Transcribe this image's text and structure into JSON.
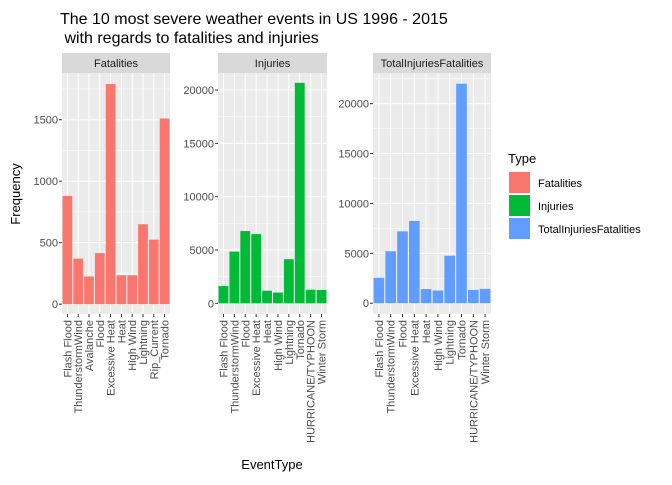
{
  "chart_data": {
    "type": "bar",
    "title": "The 10 most severe weather events in US 1996 - 2015\n with regards to fatalities and injuries",
    "xlabel": "EventType",
    "ylabel": "Frequency",
    "grid": true,
    "legend_position": "right",
    "legend": {
      "title": "Type",
      "entries": [
        {
          "label": "Fatalities",
          "color": "#F8766D"
        },
        {
          "label": "Injuries",
          "color": "#00BA38"
        },
        {
          "label": "TotalInjuriesFatalities",
          "color": "#619CFF"
        }
      ]
    },
    "facets": [
      {
        "name": "Fatalities",
        "color": "#F8766D",
        "ylim": [
          -80,
          1880
        ],
        "yticks": [
          0,
          500,
          1000,
          1500
        ],
        "categories": [
          "Flash Flood",
          "ThunderstormWind",
          "Avalanche",
          "Flood",
          "Excessive Heat",
          "Heat",
          "High Wind",
          "Lightning",
          "Rip_Current",
          "Tornado"
        ],
        "values": [
          880,
          370,
          225,
          415,
          1790,
          235,
          235,
          650,
          525,
          1510
        ]
      },
      {
        "name": "Injuries",
        "color": "#00BA38",
        "ylim": [
          -1000,
          21600
        ],
        "yticks": [
          0,
          5000,
          10000,
          15000,
          20000
        ],
        "categories": [
          "Flash Flood",
          "ThunderstormWind",
          "Flood",
          "Excessive Heat",
          "Heat",
          "High Wind",
          "Lightning",
          "Tornado",
          "HURRICANE/TYPHOON",
          "Winter Storm"
        ],
        "values": [
          1620,
          4850,
          6780,
          6490,
          1180,
          1010,
          4140,
          20680,
          1270,
          1250
        ]
      },
      {
        "name": "TotalInjuriesFatalities",
        "color": "#619CFF",
        "ylim": [
          -1080,
          23070
        ],
        "yticks": [
          0,
          5000,
          10000,
          15000,
          20000
        ],
        "categories": [
          "Flash Flood",
          "ThunderstormWind",
          "Flood",
          "Excessive Heat",
          "Heat",
          "High Wind",
          "Lightning",
          "Tornado",
          "HURRICANE/TYPHOON",
          "Winter Storm"
        ],
        "values": [
          2540,
          5210,
          7200,
          8250,
          1420,
          1270,
          4760,
          22000,
          1330,
          1440
        ]
      }
    ]
  }
}
